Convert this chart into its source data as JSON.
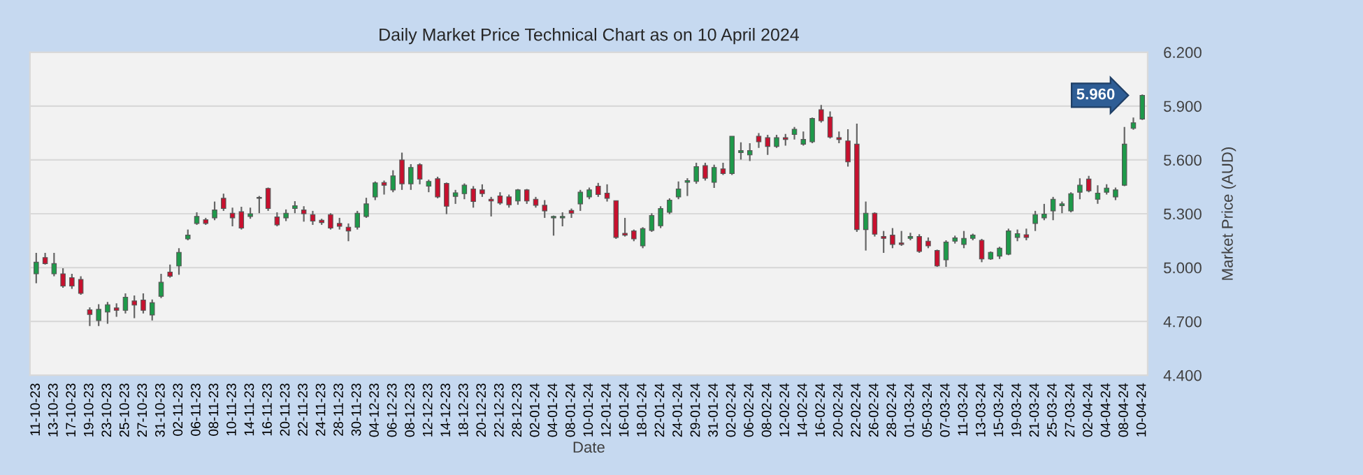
{
  "chart_data": {
    "type": "candlestick",
    "title": "Daily Market Price Technical Chart as on 10 April 2024",
    "xlabel": "Date",
    "ylabel": "Market Price (AUD)",
    "categories": [
      "11-10-23",
      null,
      "13-10-23",
      null,
      "17-10-23",
      null,
      "19-10-23",
      null,
      "23-10-23",
      null,
      "25-10-23",
      null,
      "27-10-23",
      null,
      "31-10-23",
      null,
      "02-11-23",
      null,
      "06-11-23",
      null,
      "08-11-23",
      null,
      "10-11-23",
      null,
      "14-11-23",
      null,
      "16-11-23",
      null,
      "20-11-23",
      null,
      "22-11-23",
      null,
      "24-11-23",
      null,
      "28-11-23",
      null,
      "30-11-23",
      null,
      "04-12-23",
      null,
      "06-12-23",
      null,
      "08-12-23",
      null,
      "12-12-23",
      null,
      "14-12-23",
      null,
      "18-12-23",
      null,
      "20-12-23",
      null,
      "22-12-23",
      null,
      "28-12-23",
      null,
      "02-01-24",
      null,
      "04-01-24",
      null,
      "08-01-24",
      null,
      "10-01-24",
      null,
      "12-01-24",
      null,
      "16-01-24",
      null,
      "18-01-24",
      null,
      "22-01-24",
      null,
      "24-01-24",
      null,
      "29-01-24",
      null,
      "31-01-24",
      null,
      "02-02-24",
      null,
      "06-02-24",
      null,
      "08-02-24",
      null,
      "12-02-24",
      null,
      "14-02-24",
      null,
      "16-02-24",
      null,
      "20-02-24",
      null,
      "22-02-24",
      null,
      "26-02-24",
      null,
      "28-02-24",
      null,
      "01-03-24",
      null,
      "05-03-24",
      null,
      "07-03-24",
      null,
      "11-03-24",
      null,
      "13-03-24",
      null,
      "15-03-24",
      null,
      "19-03-24",
      null,
      "21-03-24",
      null,
      "25-03-24",
      null,
      "27-03-24",
      null,
      "02-04-24",
      null,
      "04-04-24",
      null,
      "08-04-24",
      null,
      "10-04-24"
    ],
    "ohlc": [
      [
        4.965,
        5.082,
        4.913,
        5.03
      ],
      [
        5.056,
        5.082,
        5.017,
        5.022
      ],
      [
        4.965,
        5.082,
        4.952,
        5.022
      ],
      [
        4.965,
        4.996,
        4.887,
        4.897
      ],
      [
        4.944,
        4.965,
        4.882,
        4.897
      ],
      [
        4.934,
        4.952,
        4.848,
        4.856
      ],
      [
        4.765,
        4.778,
        4.674,
        4.739
      ],
      [
        4.705,
        4.796,
        4.674,
        4.767
      ],
      [
        4.752,
        4.809,
        4.687,
        4.793
      ],
      [
        4.775,
        4.801,
        4.726,
        4.762
      ],
      [
        4.762,
        4.856,
        4.744,
        4.835
      ],
      [
        4.814,
        4.845,
        4.718,
        4.791
      ],
      [
        4.819,
        4.856,
        4.744,
        4.762
      ],
      [
        4.736,
        4.822,
        4.705,
        4.804
      ],
      [
        4.84,
        4.965,
        4.83,
        4.918
      ],
      [
        4.975,
        5.017,
        4.944,
        4.952
      ],
      [
        5.009,
        5.108,
        4.96,
        5.085
      ],
      [
        5.16,
        5.212,
        5.152,
        5.181
      ],
      [
        5.246,
        5.308,
        5.238,
        5.285
      ],
      [
        5.267,
        5.277,
        5.238,
        5.246
      ],
      [
        5.277,
        5.368,
        5.264,
        5.321
      ],
      [
        5.386,
        5.412,
        5.316,
        5.329
      ],
      [
        5.303,
        5.334,
        5.23,
        5.277
      ],
      [
        5.311,
        5.339,
        5.212,
        5.22
      ],
      [
        5.285,
        5.334,
        5.272,
        5.3
      ],
      [
        5.386,
        5.399,
        5.303,
        5.391
      ],
      [
        5.441,
        5.446,
        5.316,
        5.329
      ],
      [
        5.282,
        5.308,
        5.23,
        5.238
      ],
      [
        5.277,
        5.324,
        5.259,
        5.303
      ],
      [
        5.329,
        5.37,
        5.303,
        5.345
      ],
      [
        5.321,
        5.342,
        5.256,
        5.3
      ],
      [
        5.295,
        5.316,
        5.238,
        5.259
      ],
      [
        5.264,
        5.272,
        5.238,
        5.251
      ],
      [
        5.295,
        5.303,
        5.212,
        5.22
      ],
      [
        5.246,
        5.277,
        5.212,
        5.23
      ],
      [
        5.225,
        5.246,
        5.147,
        5.204
      ],
      [
        5.225,
        5.316,
        5.212,
        5.303
      ],
      [
        5.285,
        5.389,
        5.277,
        5.355
      ],
      [
        5.394,
        5.48,
        5.376,
        5.472
      ],
      [
        5.474,
        5.485,
        5.407,
        5.459
      ],
      [
        5.433,
        5.542,
        5.42,
        5.511
      ],
      [
        5.6,
        5.641,
        5.433,
        5.467
      ],
      [
        5.467,
        5.576,
        5.433,
        5.558
      ],
      [
        5.573,
        5.581,
        5.464,
        5.493
      ],
      [
        5.454,
        5.49,
        5.42,
        5.48
      ],
      [
        5.495,
        5.506,
        5.386,
        5.394
      ],
      [
        5.469,
        5.474,
        5.298,
        5.342
      ],
      [
        5.397,
        5.433,
        5.355,
        5.417
      ],
      [
        5.412,
        5.469,
        5.381,
        5.459
      ],
      [
        5.438,
        5.454,
        5.334,
        5.368
      ],
      [
        5.433,
        5.464,
        5.394,
        5.412
      ],
      [
        5.381,
        5.394,
        5.285,
        5.371
      ],
      [
        5.399,
        5.42,
        5.35,
        5.36
      ],
      [
        5.394,
        5.407,
        5.334,
        5.35
      ],
      [
        5.371,
        5.438,
        5.35,
        5.433
      ],
      [
        5.433,
        5.438,
        5.355,
        5.371
      ],
      [
        5.381,
        5.394,
        5.334,
        5.347
      ],
      [
        5.347,
        5.376,
        5.277,
        5.316
      ],
      [
        5.277,
        5.29,
        5.178,
        5.285
      ],
      [
        5.277,
        5.308,
        5.23,
        5.285
      ],
      [
        5.318,
        5.329,
        5.277,
        5.303
      ],
      [
        5.355,
        5.433,
        5.316,
        5.42
      ],
      [
        5.394,
        5.446,
        5.381,
        5.433
      ],
      [
        5.454,
        5.472,
        5.394,
        5.407
      ],
      [
        5.415,
        5.464,
        5.368,
        5.386
      ],
      [
        5.373,
        5.373,
        5.16,
        5.168
      ],
      [
        5.191,
        5.277,
        5.173,
        5.181
      ],
      [
        5.204,
        5.212,
        5.147,
        5.16
      ],
      [
        5.121,
        5.225,
        5.108,
        5.217
      ],
      [
        5.207,
        5.303,
        5.199,
        5.29
      ],
      [
        5.233,
        5.342,
        5.22,
        5.329
      ],
      [
        5.308,
        5.386,
        5.298,
        5.376
      ],
      [
        5.394,
        5.48,
        5.381,
        5.438
      ],
      [
        5.475,
        5.498,
        5.399,
        5.485
      ],
      [
        5.48,
        5.584,
        5.467,
        5.563
      ],
      [
        5.568,
        5.584,
        5.485,
        5.498
      ],
      [
        5.475,
        5.573,
        5.444,
        5.558
      ],
      [
        5.55,
        5.584,
        5.516,
        5.524
      ],
      [
        5.524,
        5.732,
        5.516,
        5.732
      ],
      [
        5.641,
        5.698,
        5.602,
        5.652
      ],
      [
        5.628,
        5.693,
        5.594,
        5.652
      ],
      [
        5.732,
        5.75,
        5.667,
        5.701
      ],
      [
        5.724,
        5.74,
        5.628,
        5.675
      ],
      [
        5.675,
        5.74,
        5.667,
        5.724
      ],
      [
        5.724,
        5.745,
        5.68,
        5.714
      ],
      [
        5.742,
        5.784,
        5.714,
        5.771
      ],
      [
        5.688,
        5.758,
        5.68,
        5.714
      ],
      [
        5.701,
        5.836,
        5.693,
        5.831
      ],
      [
        5.88,
        5.906,
        5.808,
        5.818
      ],
      [
        5.839,
        5.87,
        5.719,
        5.727
      ],
      [
        5.724,
        5.758,
        5.693,
        5.714
      ],
      [
        5.706,
        5.771,
        5.563,
        5.589
      ],
      [
        5.688,
        5.802,
        5.199,
        5.212
      ],
      [
        5.212,
        5.368,
        5.095,
        5.303
      ],
      [
        5.303,
        5.308,
        5.173,
        5.186
      ],
      [
        5.173,
        5.204,
        5.082,
        5.163
      ],
      [
        5.181,
        5.22,
        5.108,
        5.129
      ],
      [
        5.137,
        5.204,
        5.121,
        5.129
      ],
      [
        5.163,
        5.194,
        5.152,
        5.173
      ],
      [
        5.173,
        5.186,
        5.082,
        5.09
      ],
      [
        5.147,
        5.168,
        5.108,
        5.121
      ],
      [
        5.095,
        5.1,
        5.004,
        5.009
      ],
      [
        5.043,
        5.152,
        5.004,
        5.142
      ],
      [
        5.147,
        5.178,
        5.134,
        5.165
      ],
      [
        5.129,
        5.204,
        5.108,
        5.163
      ],
      [
        5.163,
        5.189,
        5.152,
        5.181
      ],
      [
        5.152,
        5.16,
        5.03,
        5.048
      ],
      [
        5.048,
        5.09,
        5.043,
        5.085
      ],
      [
        5.064,
        5.116,
        5.048,
        5.108
      ],
      [
        5.074,
        5.217,
        5.069,
        5.204
      ],
      [
        5.168,
        5.212,
        5.147,
        5.189
      ],
      [
        5.183,
        5.217,
        5.152,
        5.168
      ],
      [
        5.246,
        5.316,
        5.204,
        5.295
      ],
      [
        5.277,
        5.355,
        5.264,
        5.298
      ],
      [
        5.316,
        5.394,
        5.264,
        5.381
      ],
      [
        5.345,
        5.368,
        5.303,
        5.355
      ],
      [
        5.316,
        5.42,
        5.308,
        5.412
      ],
      [
        5.42,
        5.498,
        5.381,
        5.459
      ],
      [
        5.493,
        5.511,
        5.42,
        5.428
      ],
      [
        5.381,
        5.459,
        5.355,
        5.415
      ],
      [
        5.42,
        5.464,
        5.407,
        5.443
      ],
      [
        5.394,
        5.446,
        5.376,
        5.433
      ],
      [
        5.459,
        5.784,
        5.454,
        5.688
      ],
      [
        5.776,
        5.836,
        5.768,
        5.807
      ],
      [
        5.828,
        5.965,
        5.823,
        5.96
      ]
    ],
    "colors": [
      "#1e9a4a",
      "#c8102e",
      "#1e9a4a",
      "#c8102e",
      "#c8102e",
      "#c8102e",
      "#c8102e",
      "#1e9a4a",
      "#1e9a4a",
      "#c8102e",
      "#1e9a4a",
      "#c8102e",
      "#c8102e",
      "#1e9a4a",
      "#1e9a4a",
      "#c8102e",
      "#1e9a4a",
      "#1e9a4a",
      "#1e9a4a",
      "#c8102e",
      "#1e9a4a",
      "#c8102e",
      "#c8102e",
      "#c8102e",
      "#1e9a4a",
      "#1e9a4a",
      "#c8102e",
      "#c8102e",
      "#1e9a4a",
      "#1e9a4a",
      "#c8102e",
      "#c8102e",
      "#c8102e",
      "#c8102e",
      "#c8102e",
      "#c8102e",
      "#1e9a4a",
      "#1e9a4a",
      "#1e9a4a",
      "#c8102e",
      "#1e9a4a",
      "#c8102e",
      "#1e9a4a",
      "#c8102e",
      "#1e9a4a",
      "#c8102e",
      "#c8102e",
      "#1e9a4a",
      "#1e9a4a",
      "#c8102e",
      "#c8102e",
      "#c8102e",
      "#c8102e",
      "#c8102e",
      "#1e9a4a",
      "#c8102e",
      "#c8102e",
      "#c8102e",
      "#1e9a4a",
      "#1e9a4a",
      "#c8102e",
      "#1e9a4a",
      "#1e9a4a",
      "#c8102e",
      "#c8102e",
      "#c8102e",
      "#c8102e",
      "#c8102e",
      "#1e9a4a",
      "#1e9a4a",
      "#1e9a4a",
      "#1e9a4a",
      "#1e9a4a",
      "#1e9a4a",
      "#1e9a4a",
      "#c8102e",
      "#1e9a4a",
      "#c8102e",
      "#1e9a4a",
      "#1e9a4a",
      "#1e9a4a",
      "#c8102e",
      "#c8102e",
      "#1e9a4a",
      "#c8102e",
      "#1e9a4a",
      "#1e9a4a",
      "#1e9a4a",
      "#c8102e",
      "#c8102e",
      "#c8102e",
      "#c8102e",
      "#c8102e",
      "#1e9a4a",
      "#c8102e",
      "#c8102e",
      "#c8102e",
      "#c8102e",
      "#1e9a4a",
      "#c8102e",
      "#c8102e",
      "#c8102e",
      "#1e9a4a",
      "#1e9a4a",
      "#1e9a4a",
      "#1e9a4a",
      "#c8102e",
      "#1e9a4a",
      "#1e9a4a",
      "#1e9a4a",
      "#1e9a4a",
      "#c8102e",
      "#1e9a4a",
      "#1e9a4a",
      "#1e9a4a",
      "#1e9a4a",
      "#1e9a4a",
      "#1e9a4a",
      "#c8102e",
      "#1e9a4a",
      "#1e9a4a",
      "#1e9a4a",
      "#1e9a4a",
      "#1e9a4a",
      "#1e9a4a"
    ],
    "ylim": [
      4.4,
      6.2
    ],
    "yticks": [
      {
        "value": 4.4,
        "label": "4.400"
      },
      {
        "value": 4.7,
        "label": "4.700"
      },
      {
        "value": 5.0,
        "label": "5.000"
      },
      {
        "value": 5.3,
        "label": "5.300"
      },
      {
        "value": 5.6,
        "label": "5.600"
      },
      {
        "value": 5.9,
        "label": "5.900"
      },
      {
        "value": 6.2,
        "label": "6.200"
      }
    ],
    "grid": "y",
    "annotations": [
      {
        "text": "5.960",
        "x": "10-04-24",
        "y": 5.96
      }
    ]
  }
}
